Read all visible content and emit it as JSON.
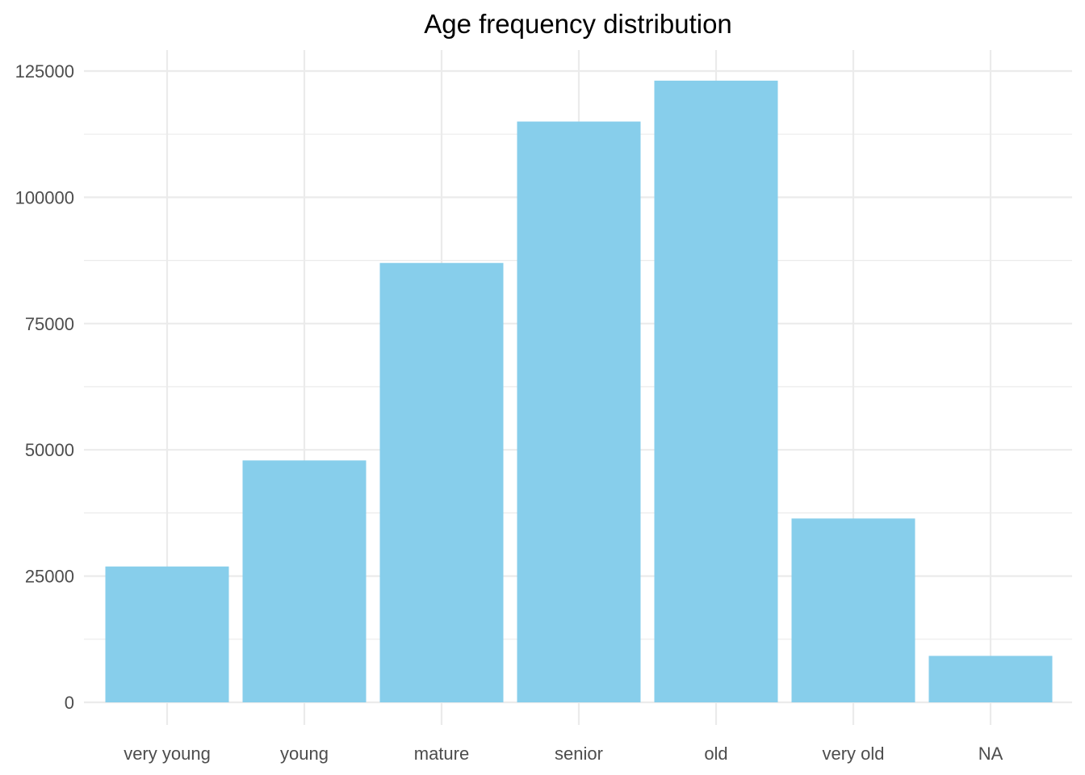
{
  "chart_data": {
    "type": "bar",
    "title": "Age frequency distribution",
    "xlabel": "",
    "ylabel": "",
    "categories": [
      "very young",
      "young",
      "mature",
      "senior",
      "old",
      "very old",
      "NA"
    ],
    "values": [
      26900,
      47900,
      87000,
      115000,
      123100,
      36400,
      9200
    ],
    "ylim": [
      0,
      125000
    ],
    "yticks": [
      0,
      25000,
      50000,
      75000,
      100000,
      125000
    ],
    "grid": true,
    "legend": "none",
    "bar_color": "#87CEEB",
    "grid_color": "#ebebeb"
  }
}
